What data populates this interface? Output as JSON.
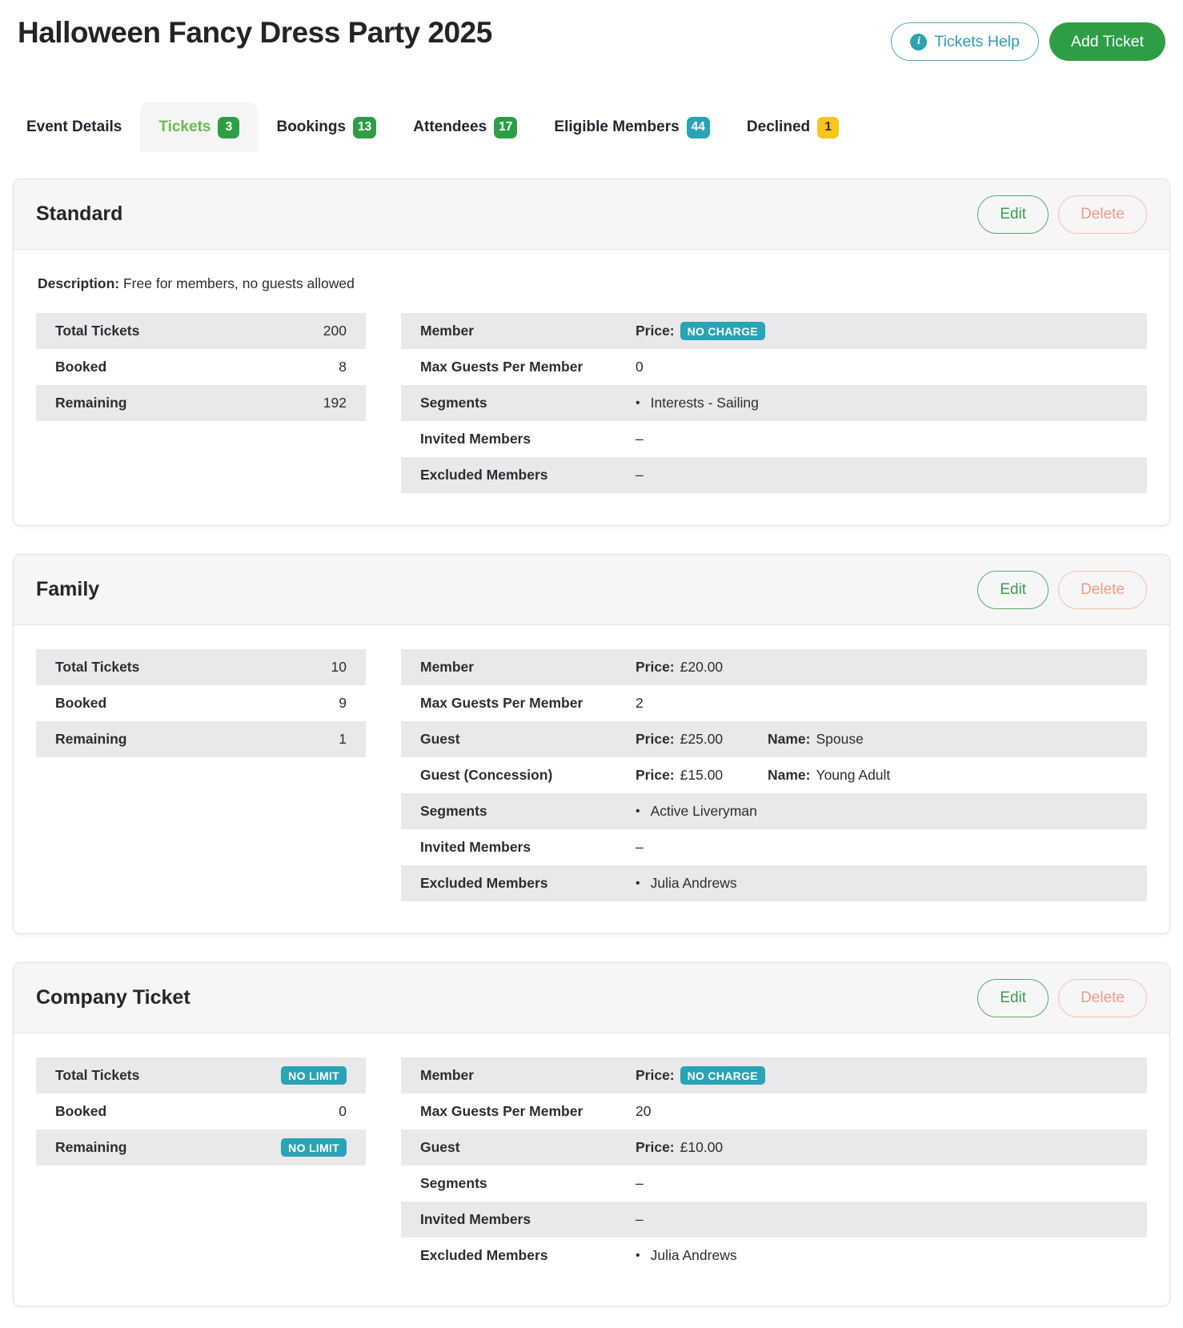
{
  "page": {
    "title": "Halloween Fancy Dress Party 2025",
    "help_button": "Tickets Help",
    "add_button": "Add Ticket"
  },
  "tabs": [
    {
      "label": "Event Details",
      "count": null,
      "badge": null,
      "active": false
    },
    {
      "label": "Tickets",
      "count": "3",
      "badge": "green",
      "active": true
    },
    {
      "label": "Bookings",
      "count": "13",
      "badge": "green",
      "active": false
    },
    {
      "label": "Attendees",
      "count": "17",
      "badge": "green",
      "active": false
    },
    {
      "label": "Eligible Members",
      "count": "44",
      "badge": "teal",
      "active": false
    },
    {
      "label": "Declined",
      "count": "1",
      "badge": "amber",
      "active": false
    }
  ],
  "labels": {
    "description": "Description:",
    "price": "Price:",
    "name": "Name:",
    "edit": "Edit",
    "delete": "Delete",
    "empty": "–",
    "bullet": "•"
  },
  "tickets": [
    {
      "name": "Standard",
      "description": "Free for members, no guests allowed",
      "stats": [
        {
          "label": "Total Tickets",
          "value": "200"
        },
        {
          "label": "Booked",
          "value": "8"
        },
        {
          "label": "Remaining",
          "value": "192"
        }
      ],
      "details": [
        {
          "label": "Member",
          "kind": "price_badge",
          "badge": "NO CHARGE"
        },
        {
          "label": "Max Guests Per Member",
          "kind": "text",
          "value": "0"
        },
        {
          "label": "Segments",
          "kind": "bullet",
          "value": "Interests - Sailing"
        },
        {
          "label": "Invited Members",
          "kind": "empty"
        },
        {
          "label": "Excluded Members",
          "kind": "empty"
        }
      ]
    },
    {
      "name": "Family",
      "description": null,
      "stats": [
        {
          "label": "Total Tickets",
          "value": "10"
        },
        {
          "label": "Booked",
          "value": "9"
        },
        {
          "label": "Remaining",
          "value": "1"
        }
      ],
      "details": [
        {
          "label": "Member",
          "kind": "price",
          "price": "£20.00"
        },
        {
          "label": "Max Guests Per Member",
          "kind": "text",
          "value": "2"
        },
        {
          "label": "Guest",
          "kind": "price",
          "price": "£25.00",
          "name": "Spouse"
        },
        {
          "label": "Guest (Concession)",
          "kind": "price",
          "price": "£15.00",
          "name": "Young Adult"
        },
        {
          "label": "Segments",
          "kind": "bullet",
          "value": "Active Liveryman"
        },
        {
          "label": "Invited Members",
          "kind": "empty"
        },
        {
          "label": "Excluded Members",
          "kind": "bullet",
          "value": "Julia Andrews"
        }
      ]
    },
    {
      "name": "Company Ticket",
      "description": null,
      "stats": [
        {
          "label": "Total Tickets",
          "badge": "NO LIMIT"
        },
        {
          "label": "Booked",
          "value": "0"
        },
        {
          "label": "Remaining",
          "badge": "NO LIMIT"
        }
      ],
      "details": [
        {
          "label": "Member",
          "kind": "price_badge",
          "badge": "NO CHARGE"
        },
        {
          "label": "Max Guests Per Member",
          "kind": "text",
          "value": "20"
        },
        {
          "label": "Guest",
          "kind": "price",
          "price": "£10.00"
        },
        {
          "label": "Segments",
          "kind": "empty"
        },
        {
          "label": "Invited Members",
          "kind": "empty"
        },
        {
          "label": "Excluded Members",
          "kind": "bullet",
          "value": "Julia Andrews"
        }
      ]
    }
  ],
  "colors": {
    "green": "#2e9e45",
    "teal": "#29a4b4",
    "amber": "#f9c51d",
    "active_tab_green": "#69bb4c",
    "edit_green": "#3d9e4d",
    "delete_salmon": "#f29a84",
    "row_gray": "#e9e9eb",
    "card_header_gray": "#f6f6f7"
  }
}
